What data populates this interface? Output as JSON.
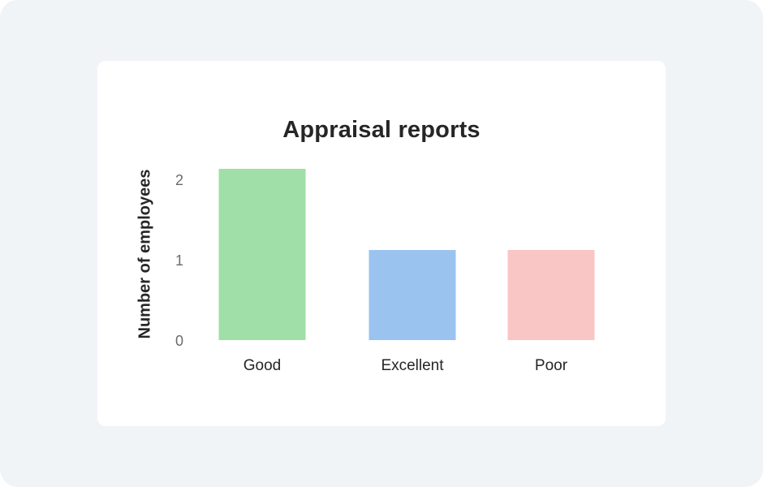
{
  "chart_data": {
    "type": "bar",
    "title": "Appraisal reports",
    "xlabel": "",
    "ylabel": "Number of employees",
    "categories": [
      "Good",
      "Excellent",
      "Poor"
    ],
    "values": [
      2,
      1,
      1
    ],
    "colors": [
      "#a0dfa7",
      "#9ac3ef",
      "#f9c5c5"
    ],
    "yticks": [
      "0",
      "1",
      "2"
    ],
    "ylim": [
      0,
      2
    ],
    "grid": false,
    "legend": "none"
  }
}
